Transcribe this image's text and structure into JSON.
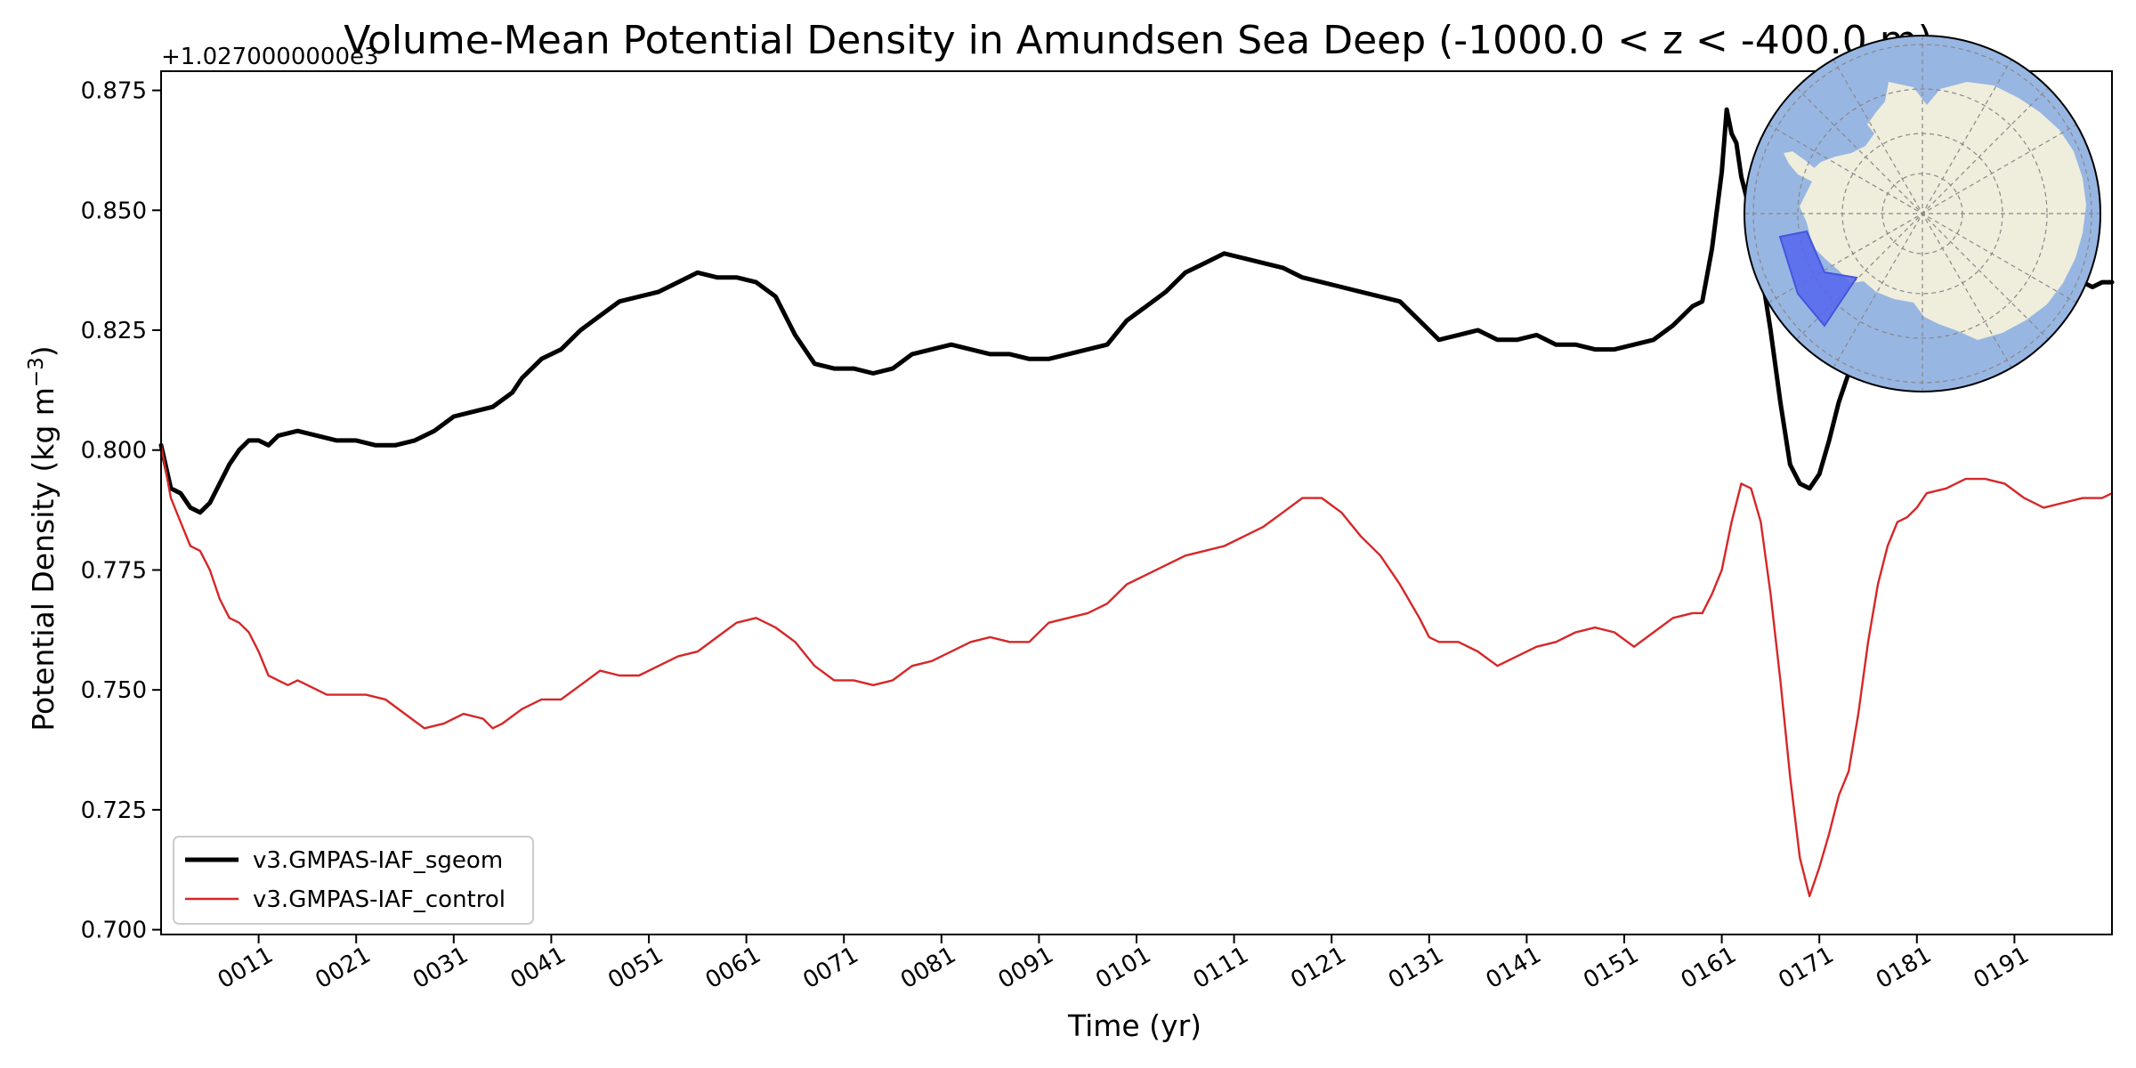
{
  "chart_data": {
    "type": "line",
    "title": "Volume-Mean Potential Density in Amundsen Sea Deep (-1000.0 < z < -400.0 m)",
    "xlabel": "Time (yr)",
    "ylabel": "Potential Density (kg m",
    "ylabel_exponent": "−3",
    "ylabel_suffix": ")",
    "offset_label": "+1.0270000000e3",
    "xlim": [
      1,
      201
    ],
    "ylim": [
      0.699,
      0.879
    ],
    "x_ticks": [
      11,
      21,
      31,
      41,
      51,
      61,
      71,
      81,
      91,
      101,
      111,
      121,
      131,
      141,
      151,
      161,
      171,
      181,
      191
    ],
    "x_tick_labels": [
      "0011",
      "0021",
      "0031",
      "0041",
      "0051",
      "0061",
      "0071",
      "0081",
      "0091",
      "0101",
      "0111",
      "0121",
      "0131",
      "0141",
      "0151",
      "0161",
      "0171",
      "0181",
      "0191"
    ],
    "y_ticks": [
      0.7,
      0.725,
      0.75,
      0.775,
      0.8,
      0.825,
      0.85,
      0.875
    ],
    "y_tick_labels": [
      "0.700",
      "0.725",
      "0.750",
      "0.775",
      "0.800",
      "0.825",
      "0.850",
      "0.875"
    ],
    "legend_position": "lower-left",
    "grid": false,
    "series": [
      {
        "name": "v3.GMPAS-IAF_sgeom",
        "color": "#000000",
        "points": [
          [
            1,
            0.801
          ],
          [
            2,
            0.792
          ],
          [
            3,
            0.791
          ],
          [
            4,
            0.788
          ],
          [
            5,
            0.787
          ],
          [
            6,
            0.789
          ],
          [
            7,
            0.793
          ],
          [
            8,
            0.797
          ],
          [
            9,
            0.8
          ],
          [
            10,
            0.802
          ],
          [
            11,
            0.802
          ],
          [
            12,
            0.801
          ],
          [
            13,
            0.803
          ],
          [
            15,
            0.804
          ],
          [
            17,
            0.803
          ],
          [
            19,
            0.802
          ],
          [
            21,
            0.802
          ],
          [
            23,
            0.801
          ],
          [
            25,
            0.801
          ],
          [
            27,
            0.802
          ],
          [
            29,
            0.804
          ],
          [
            31,
            0.807
          ],
          [
            33,
            0.808
          ],
          [
            35,
            0.809
          ],
          [
            37,
            0.812
          ],
          [
            38,
            0.815
          ],
          [
            40,
            0.819
          ],
          [
            42,
            0.821
          ],
          [
            44,
            0.825
          ],
          [
            46,
            0.828
          ],
          [
            48,
            0.831
          ],
          [
            50,
            0.832
          ],
          [
            52,
            0.833
          ],
          [
            54,
            0.835
          ],
          [
            56,
            0.837
          ],
          [
            58,
            0.836
          ],
          [
            60,
            0.836
          ],
          [
            62,
            0.835
          ],
          [
            64,
            0.832
          ],
          [
            66,
            0.824
          ],
          [
            67,
            0.821
          ],
          [
            68,
            0.818
          ],
          [
            70,
            0.817
          ],
          [
            72,
            0.817
          ],
          [
            74,
            0.816
          ],
          [
            76,
            0.817
          ],
          [
            78,
            0.82
          ],
          [
            80,
            0.821
          ],
          [
            82,
            0.822
          ],
          [
            84,
            0.821
          ],
          [
            86,
            0.82
          ],
          [
            88,
            0.82
          ],
          [
            90,
            0.819
          ],
          [
            92,
            0.819
          ],
          [
            94,
            0.82
          ],
          [
            96,
            0.821
          ],
          [
            98,
            0.822
          ],
          [
            100,
            0.827
          ],
          [
            102,
            0.83
          ],
          [
            104,
            0.833
          ],
          [
            106,
            0.837
          ],
          [
            108,
            0.839
          ],
          [
            110,
            0.841
          ],
          [
            112,
            0.84
          ],
          [
            114,
            0.839
          ],
          [
            116,
            0.838
          ],
          [
            118,
            0.836
          ],
          [
            120,
            0.835
          ],
          [
            122,
            0.834
          ],
          [
            124,
            0.833
          ],
          [
            126,
            0.832
          ],
          [
            128,
            0.831
          ],
          [
            130,
            0.827
          ],
          [
            132,
            0.823
          ],
          [
            134,
            0.824
          ],
          [
            136,
            0.825
          ],
          [
            138,
            0.823
          ],
          [
            140,
            0.823
          ],
          [
            142,
            0.824
          ],
          [
            144,
            0.822
          ],
          [
            146,
            0.822
          ],
          [
            148,
            0.821
          ],
          [
            150,
            0.821
          ],
          [
            152,
            0.822
          ],
          [
            154,
            0.823
          ],
          [
            156,
            0.826
          ],
          [
            158,
            0.83
          ],
          [
            159,
            0.831
          ],
          [
            160,
            0.842
          ],
          [
            161,
            0.858
          ],
          [
            161.5,
            0.871
          ],
          [
            162,
            0.866
          ],
          [
            162.5,
            0.864
          ],
          [
            163,
            0.857
          ],
          [
            164,
            0.849
          ],
          [
            165,
            0.838
          ],
          [
            166,
            0.825
          ],
          [
            167,
            0.81
          ],
          [
            168,
            0.797
          ],
          [
            169,
            0.793
          ],
          [
            170,
            0.792
          ],
          [
            171,
            0.795
          ],
          [
            172,
            0.802
          ],
          [
            173,
            0.81
          ],
          [
            174,
            0.816
          ]
        ]
      },
      {
        "name": "v3.GMPAS-IAF_control",
        "color": "#d62728",
        "points": [
          [
            1,
            0.801
          ],
          [
            2,
            0.79
          ],
          [
            3,
            0.785
          ],
          [
            4,
            0.78
          ],
          [
            5,
            0.779
          ],
          [
            6,
            0.775
          ],
          [
            7,
            0.769
          ],
          [
            8,
            0.765
          ],
          [
            9,
            0.764
          ],
          [
            10,
            0.762
          ],
          [
            11,
            0.758
          ],
          [
            12,
            0.753
          ],
          [
            13,
            0.752
          ],
          [
            14,
            0.751
          ],
          [
            15,
            0.752
          ],
          [
            16,
            0.751
          ],
          [
            18,
            0.749
          ],
          [
            20,
            0.749
          ],
          [
            22,
            0.749
          ],
          [
            24,
            0.748
          ],
          [
            26,
            0.745
          ],
          [
            28,
            0.742
          ],
          [
            30,
            0.743
          ],
          [
            32,
            0.745
          ],
          [
            34,
            0.744
          ],
          [
            35,
            0.742
          ],
          [
            36,
            0.743
          ],
          [
            38,
            0.746
          ],
          [
            40,
            0.748
          ],
          [
            42,
            0.748
          ],
          [
            44,
            0.751
          ],
          [
            46,
            0.754
          ],
          [
            48,
            0.753
          ],
          [
            50,
            0.753
          ],
          [
            52,
            0.755
          ],
          [
            54,
            0.757
          ],
          [
            56,
            0.758
          ],
          [
            58,
            0.761
          ],
          [
            60,
            0.764
          ],
          [
            62,
            0.765
          ],
          [
            64,
            0.763
          ],
          [
            66,
            0.76
          ],
          [
            68,
            0.755
          ],
          [
            70,
            0.752
          ],
          [
            72,
            0.752
          ],
          [
            74,
            0.751
          ],
          [
            76,
            0.752
          ],
          [
            78,
            0.755
          ],
          [
            80,
            0.756
          ],
          [
            82,
            0.758
          ],
          [
            84,
            0.76
          ],
          [
            86,
            0.761
          ],
          [
            88,
            0.76
          ],
          [
            90,
            0.76
          ],
          [
            92,
            0.764
          ],
          [
            94,
            0.765
          ],
          [
            96,
            0.766
          ],
          [
            98,
            0.768
          ],
          [
            100,
            0.772
          ],
          [
            102,
            0.774
          ],
          [
            104,
            0.776
          ],
          [
            106,
            0.778
          ],
          [
            108,
            0.779
          ],
          [
            110,
            0.78
          ],
          [
            112,
            0.782
          ],
          [
            114,
            0.784
          ],
          [
            116,
            0.787
          ],
          [
            118,
            0.79
          ],
          [
            120,
            0.79
          ],
          [
            122,
            0.787
          ],
          [
            124,
            0.782
          ],
          [
            126,
            0.778
          ],
          [
            128,
            0.772
          ],
          [
            130,
            0.765
          ],
          [
            131,
            0.761
          ],
          [
            132,
            0.76
          ],
          [
            134,
            0.76
          ],
          [
            136,
            0.758
          ],
          [
            138,
            0.755
          ],
          [
            140,
            0.757
          ],
          [
            142,
            0.759
          ],
          [
            144,
            0.76
          ],
          [
            146,
            0.762
          ],
          [
            148,
            0.763
          ],
          [
            150,
            0.762
          ],
          [
            152,
            0.759
          ],
          [
            154,
            0.762
          ],
          [
            156,
            0.765
          ],
          [
            158,
            0.766
          ],
          [
            159,
            0.766
          ],
          [
            160,
            0.77
          ],
          [
            161,
            0.775
          ],
          [
            162,
            0.785
          ],
          [
            163,
            0.793
          ],
          [
            164,
            0.792
          ],
          [
            165,
            0.785
          ],
          [
            166,
            0.77
          ],
          [
            167,
            0.752
          ],
          [
            168,
            0.732
          ],
          [
            169,
            0.715
          ],
          [
            170,
            0.707
          ],
          [
            171,
            0.713
          ],
          [
            172,
            0.72
          ],
          [
            173,
            0.728
          ],
          [
            174,
            0.733
          ],
          [
            175,
            0.745
          ],
          [
            176,
            0.76
          ],
          [
            177,
            0.772
          ],
          [
            178,
            0.78
          ],
          [
            179,
            0.785
          ],
          [
            180,
            0.786
          ],
          [
            181,
            0.788
          ],
          [
            182,
            0.791
          ],
          [
            184,
            0.792
          ],
          [
            186,
            0.794
          ],
          [
            188,
            0.794
          ],
          [
            190,
            0.793
          ],
          [
            192,
            0.79
          ],
          [
            194,
            0.788
          ],
          [
            196,
            0.789
          ],
          [
            198,
            0.79
          ],
          [
            200,
            0.79
          ],
          [
            201,
            0.791
          ]
        ]
      },
      {
        "name": "v3.GMPAS-IAF_sgeom",
        "color": "#000000",
        "points": [
          [
            198,
            0.835
          ],
          [
            199,
            0.834
          ],
          [
            200,
            0.835
          ],
          [
            201,
            0.835
          ]
        ]
      }
    ]
  },
  "inset_map": {
    "icon": "antarctica-map-icon",
    "region": "amundsen-sea-highlight",
    "ocean_color": "#98b6e2",
    "land_color": "#efeddc",
    "region_color": "#5566ee"
  }
}
